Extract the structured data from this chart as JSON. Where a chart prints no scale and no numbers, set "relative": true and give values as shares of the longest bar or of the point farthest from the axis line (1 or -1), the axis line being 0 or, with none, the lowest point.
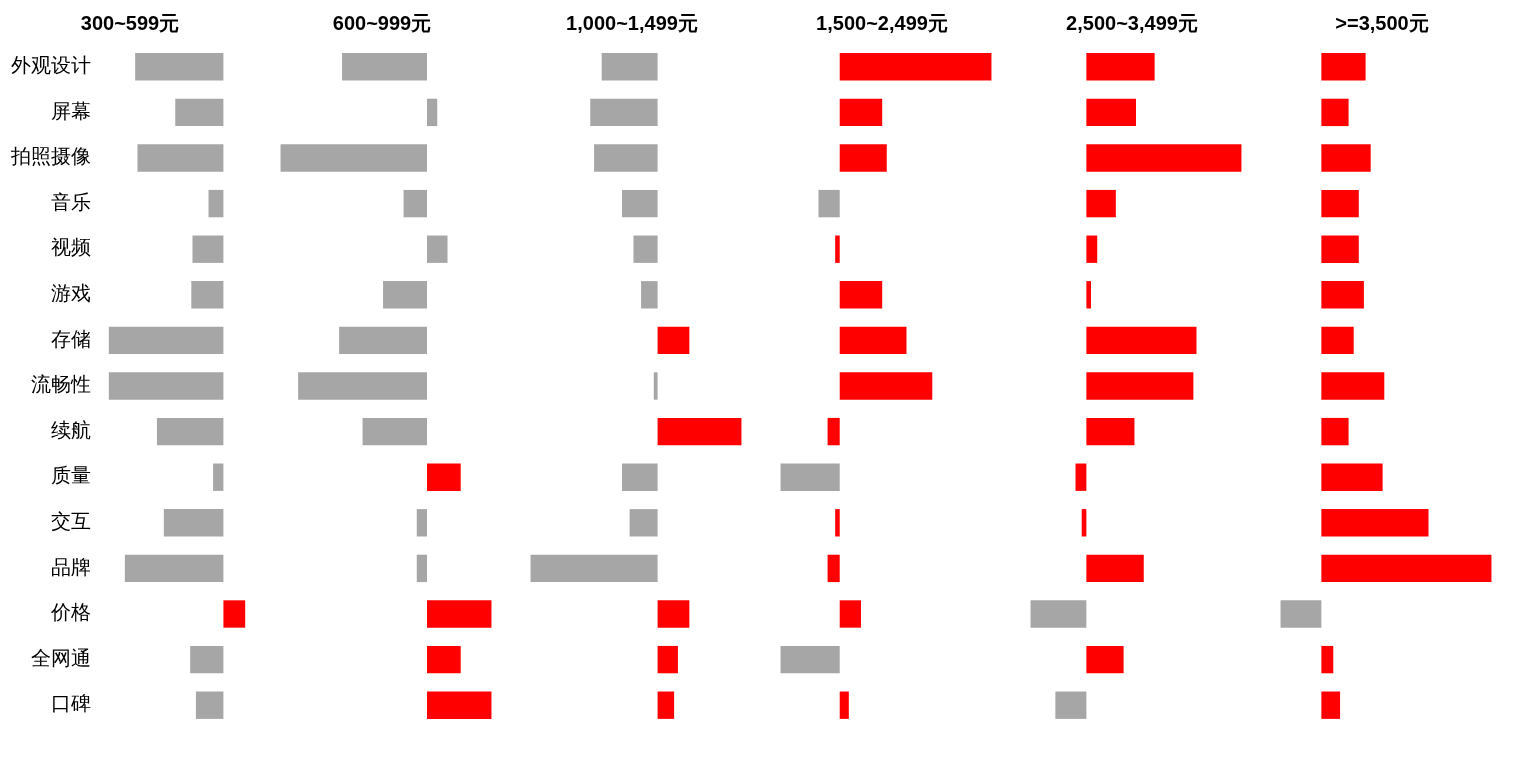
{
  "chart_data": [
    {
      "type": "bar",
      "orientation": "horizontal",
      "relative": true,
      "tick_labels": "y",
      "title": "300~599元",
      "categories": [
        "外观设计",
        "屏幕",
        "拍照摄像",
        "音乐",
        "视频",
        "游戏",
        "存储",
        "流畅性",
        "续航",
        "质量",
        "交互",
        "品牌",
        "价格",
        "全网通",
        "口碑"
      ],
      "values": [
        -0.77,
        -0.42,
        -0.75,
        -0.13,
        -0.27,
        -0.28,
        -1,
        -1,
        -0.58,
        -0.09,
        -0.52,
        -0.86,
        0.19,
        -0.29,
        -0.24
      ],
      "colors": [
        "#a6a6a6",
        "#a6a6a6",
        "#a6a6a6",
        "#a6a6a6",
        "#a6a6a6",
        "#a6a6a6",
        "#a6a6a6",
        "#a6a6a6",
        "#a6a6a6",
        "#a6a6a6",
        "#a6a6a6",
        "#a6a6a6",
        "#ff0000",
        "#a6a6a6",
        "#a6a6a6"
      ]
    },
    {
      "type": "bar",
      "orientation": "horizontal",
      "relative": true,
      "tick_labels": false,
      "title": "600~999元",
      "categories": [
        null,
        null,
        null,
        null,
        null,
        null,
        null,
        null,
        null,
        null,
        null,
        null,
        null,
        null,
        null
      ],
      "values": [
        -0.58,
        0.07,
        -1,
        -0.16,
        0.14,
        -0.3,
        -0.6,
        -0.88,
        -0.44,
        0.23,
        -0.07,
        -0.07,
        0.44,
        0.23,
        0.44
      ],
      "colors": [
        "#a6a6a6",
        "#a6a6a6",
        "#a6a6a6",
        "#a6a6a6",
        "#a6a6a6",
        "#a6a6a6",
        "#a6a6a6",
        "#a6a6a6",
        "#a6a6a6",
        "#ff0000",
        "#a6a6a6",
        "#a6a6a6",
        "#ff0000",
        "#ff0000",
        "#ff0000"
      ]
    },
    {
      "type": "bar",
      "orientation": "horizontal",
      "relative": true,
      "tick_labels": false,
      "title": "1,000~1,499元",
      "categories": [
        null,
        null,
        null,
        null,
        null,
        null,
        null,
        null,
        null,
        null,
        null,
        null,
        null,
        null,
        null
      ],
      "values": [
        -0.44,
        -0.53,
        -0.5,
        -0.28,
        -0.19,
        -0.13,
        0.25,
        -0.03,
        0.66,
        -0.28,
        -0.22,
        -1,
        0.25,
        0.16,
        0.13
      ],
      "colors": [
        "#a6a6a6",
        "#a6a6a6",
        "#a6a6a6",
        "#a6a6a6",
        "#a6a6a6",
        "#a6a6a6",
        "#ff0000",
        "#a6a6a6",
        "#ff0000",
        "#a6a6a6",
        "#a6a6a6",
        "#a6a6a6",
        "#ff0000",
        "#ff0000",
        "#ff0000"
      ]
    },
    {
      "type": "bar",
      "orientation": "horizontal",
      "relative": true,
      "tick_labels": false,
      "title": "1,500~2,499元",
      "categories": [
        null,
        null,
        null,
        null,
        null,
        null,
        null,
        null,
        null,
        null,
        null,
        null,
        null,
        null,
        null
      ],
      "values": [
        1,
        0.28,
        0.31,
        -0.14,
        -0.03,
        0.28,
        0.44,
        0.61,
        -0.08,
        -0.39,
        -0.03,
        -0.08,
        0.14,
        -0.39,
        0.06
      ],
      "colors": [
        "#ff0000",
        "#ff0000",
        "#ff0000",
        "#a6a6a6",
        "#ff0000",
        "#ff0000",
        "#ff0000",
        "#ff0000",
        "#ff0000",
        "#a6a6a6",
        "#ff0000",
        "#ff0000",
        "#ff0000",
        "#a6a6a6",
        "#ff0000"
      ]
    },
    {
      "type": "bar",
      "orientation": "horizontal",
      "relative": true,
      "tick_labels": false,
      "title": "2,500~3,499元",
      "categories": [
        null,
        null,
        null,
        null,
        null,
        null,
        null,
        null,
        null,
        null,
        null,
        null,
        null,
        null,
        null
      ],
      "values": [
        0.44,
        0.32,
        1,
        0.19,
        0.07,
        0.03,
        0.71,
        0.69,
        0.31,
        -0.07,
        -0.03,
        0.37,
        -0.36,
        0.24,
        -0.2
      ],
      "colors": [
        "#ff0000",
        "#ff0000",
        "#ff0000",
        "#ff0000",
        "#ff0000",
        "#ff0000",
        "#ff0000",
        "#ff0000",
        "#ff0000",
        "#ff0000",
        "#ff0000",
        "#ff0000",
        "#a6a6a6",
        "#ff0000",
        "#a6a6a6"
      ]
    },
    {
      "type": "bar",
      "orientation": "horizontal",
      "relative": true,
      "tick_labels": false,
      "title": ">=3,500元",
      "categories": [
        null,
        null,
        null,
        null,
        null,
        null,
        null,
        null,
        null,
        null,
        null,
        null,
        null,
        null,
        null
      ],
      "values": [
        0.26,
        0.16,
        0.29,
        0.22,
        0.22,
        0.25,
        0.19,
        0.37,
        0.16,
        0.36,
        0.63,
        1,
        -0.24,
        0.07,
        0.11
      ],
      "colors": [
        "#ff0000",
        "#ff0000",
        "#ff0000",
        "#ff0000",
        "#ff0000",
        "#ff0000",
        "#ff0000",
        "#ff0000",
        "#ff0000",
        "#ff0000",
        "#ff0000",
        "#ff0000",
        "#a6a6a6",
        "#ff0000",
        "#ff0000"
      ]
    }
  ]
}
